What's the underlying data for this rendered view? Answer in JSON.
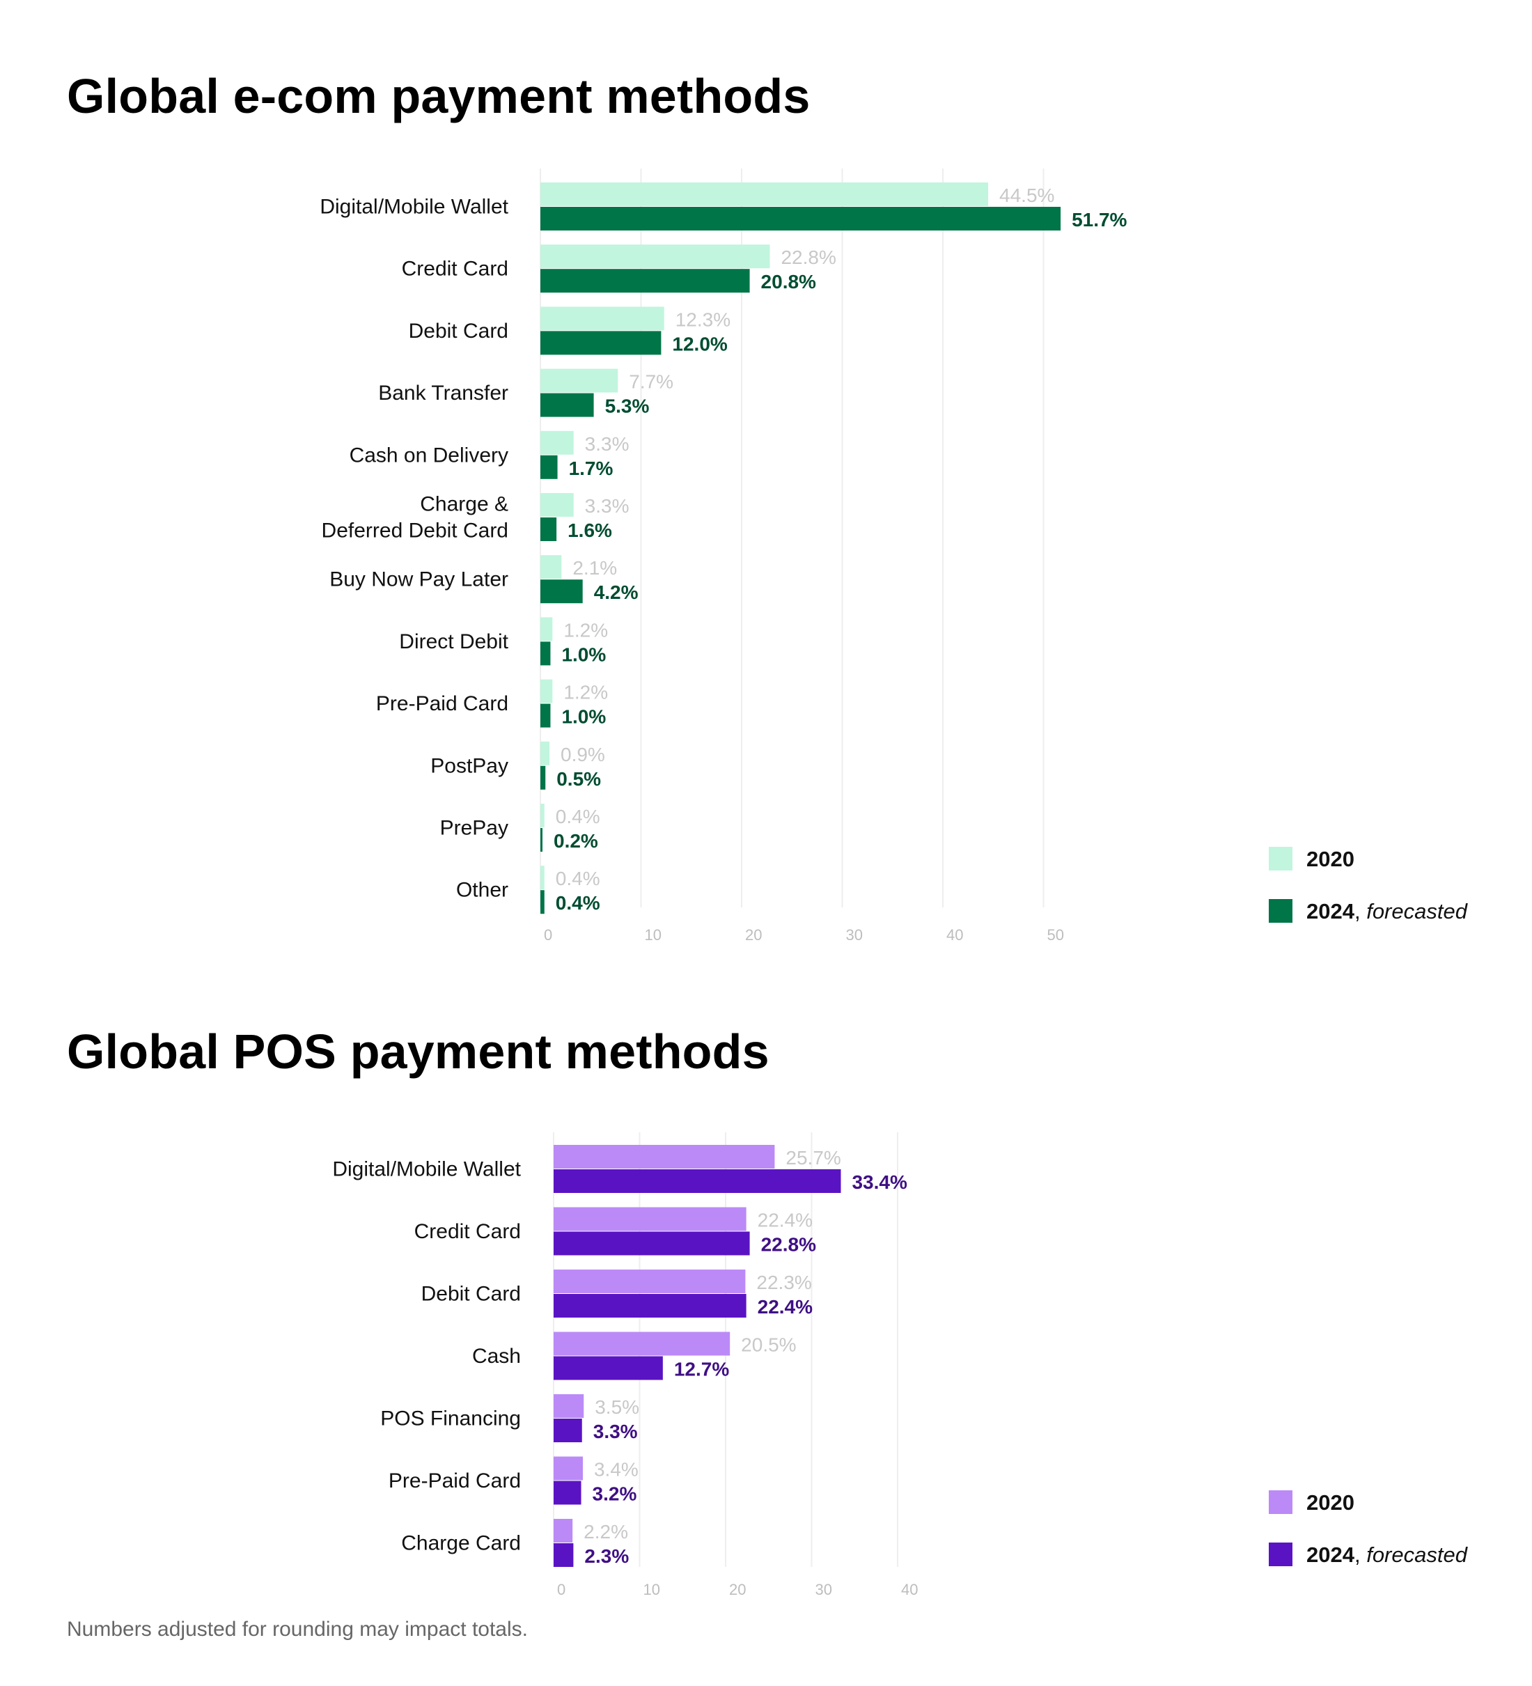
{
  "footnote": "Numbers adjusted for rounding may impact totals.",
  "colors": {
    "ecom_2020": "#c1f5de",
    "ecom_2024": "#007548",
    "ecom_2024_label": "#004d31",
    "pos_2020": "#bb8af7",
    "pos_2024": "#5a13c3",
    "pos_2024_label": "#3f0f85",
    "label_2020": "#c8c8c8",
    "grid": "#eeeeee",
    "tick": "#bdbdbd"
  },
  "chart_data": [
    {
      "id": "ecom",
      "type": "bar",
      "orientation": "horizontal",
      "title": "Global e-com payment methods",
      "categories": [
        "Digital/Mobile Wallet",
        "Credit Card",
        "Debit Card",
        "Bank Transfer",
        "Cash on Delivery",
        "Charge &\nDeferred Debit Card",
        "Buy Now Pay Later",
        "Direct Debit",
        "Pre-Paid Card",
        "PostPay",
        "PrePay",
        "Other"
      ],
      "series": [
        {
          "name": "2020",
          "values": [
            44.5,
            22.8,
            12.3,
            7.7,
            3.3,
            3.3,
            2.1,
            1.2,
            1.2,
            0.9,
            0.4,
            0.4
          ],
          "labels": [
            "44.5%",
            "22.8%",
            "12.3%",
            "7.7%",
            "3.3%",
            "3.3%",
            "2.1%",
            "1.2%",
            "1.2%",
            "0.9%",
            "0.4%",
            "0.4%"
          ]
        },
        {
          "name": "2024",
          "note": "forecasted",
          "values": [
            51.7,
            20.8,
            12.0,
            5.3,
            1.7,
            1.6,
            4.2,
            1.0,
            1.0,
            0.5,
            0.2,
            0.4
          ],
          "labels": [
            "51.7%",
            "20.8%",
            "12.0%",
            "5.3%",
            "1.7%",
            "1.6%",
            "4.2%",
            "1.0%",
            "1.0%",
            "0.5%",
            "0.2%",
            "0.4%"
          ]
        }
      ],
      "xticks": [
        0,
        10,
        20,
        30,
        40,
        50
      ],
      "xlim": [
        0,
        50
      ],
      "grid": true,
      "legend_position": "bottom-right"
    },
    {
      "id": "pos",
      "type": "bar",
      "orientation": "horizontal",
      "title": "Global POS payment methods",
      "categories": [
        "Digital/Mobile Wallet",
        "Credit Card",
        "Debit Card",
        "Cash",
        "POS Financing",
        "Pre-Paid Card",
        "Charge Card"
      ],
      "series": [
        {
          "name": "2020",
          "values": [
            25.7,
            22.4,
            22.3,
            20.5,
            3.5,
            3.4,
            2.2
          ],
          "labels": [
            "25.7%",
            "22.4%",
            "22.3%",
            "20.5%",
            "3.5%",
            "3.4%",
            "2.2%"
          ]
        },
        {
          "name": "2024",
          "note": "forecasted",
          "values": [
            33.4,
            22.8,
            22.4,
            12.7,
            3.3,
            3.2,
            2.3
          ],
          "labels": [
            "33.4%",
            "22.8%",
            "22.4%",
            "12.7%",
            "3.3%",
            "3.2%",
            "2.3%"
          ]
        }
      ],
      "xticks": [
        0,
        10,
        20,
        30,
        40
      ],
      "xlim": [
        0,
        40
      ],
      "grid": true,
      "legend_position": "bottom-right"
    }
  ]
}
